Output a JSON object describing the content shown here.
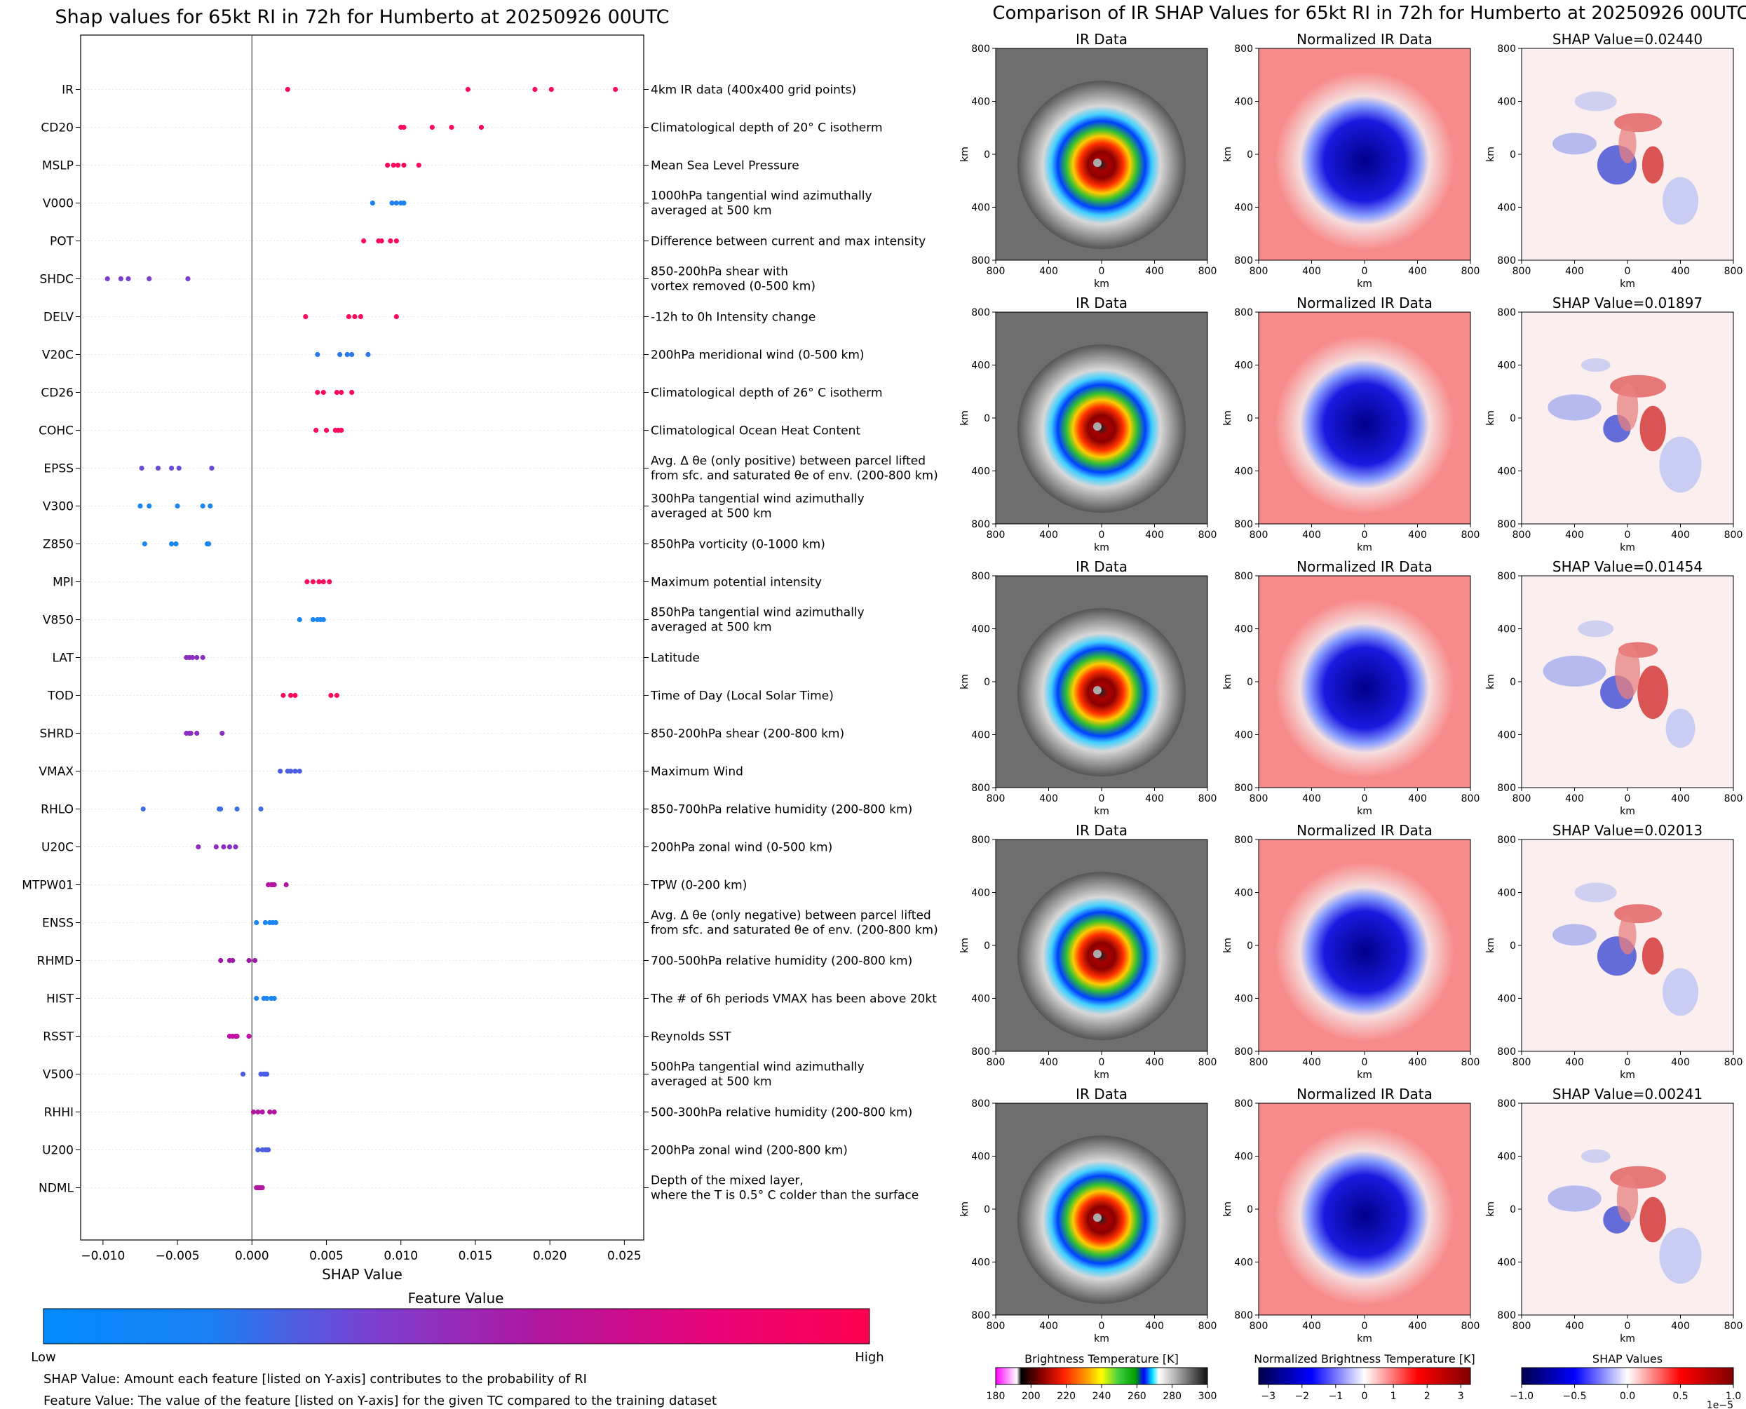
{
  "left_panel": {
    "notes": [
      "SHAP Value: Amount each feature [listed on Y-axis] contributes to the probability of RI",
      "Feature Value: The value of the feature [listed on Y-axis] for the given TC compared to the training dataset"
    ],
    "colorbar": {
      "title": "Feature Value",
      "low_label": "Low",
      "high_label": "High",
      "colors": [
        "#008afb",
        "#7c3fd0",
        "#c70a9f",
        "#ff0050"
      ]
    }
  },
  "right_panel": {
    "title": "Comparison of IR SHAP Values for 65kt RI in 72h for Humberto at 20250926 00UTC",
    "column_titles": [
      "IR Data",
      "Normalized IR Data"
    ],
    "shap_titles": [
      "SHAP Value=0.02440",
      "SHAP Value=0.01897",
      "SHAP Value=0.01454",
      "SHAP Value=0.02013",
      "SHAP Value=0.00241"
    ],
    "axis_tick_labels": [
      "800",
      "400",
      "0",
      "400",
      "800"
    ],
    "axis_label": "km",
    "colorbars": [
      {
        "title": "Brightness Temperature [K]",
        "ticks": [
          "180",
          "200",
          "220",
          "240",
          "260",
          "280",
          "300"
        ]
      },
      {
        "title": "Normalized Brightness Temperature [K]",
        "ticks": [
          "−3",
          "−2",
          "−1",
          "0",
          "1",
          "2",
          "3"
        ]
      },
      {
        "title": "SHAP Values",
        "ticks": [
          "−1.0",
          "−0.5",
          "0.0",
          "0.5",
          "1.0"
        ],
        "offset_label": "1e−5"
      }
    ]
  },
  "chart_data": [
    {
      "type": "scatter",
      "title": "Shap values for 65kt RI in 72h for Humberto at 20250926 00UTC",
      "xlabel": "SHAP Value",
      "xlim": [
        -0.0115,
        0.0263
      ],
      "xticks": [
        -0.01,
        -0.005,
        0.0,
        0.005,
        0.01,
        0.015,
        0.02,
        0.025
      ],
      "xtick_labels": [
        "−0.010",
        "−0.005",
        "0.000",
        "0.005",
        "0.010",
        "0.015",
        "0.020",
        "0.025"
      ],
      "features": [
        {
          "name": "IR",
          "description": [
            "4km IR data (400x400 grid points)"
          ],
          "color": "#ff0a5e",
          "values": [
            0.0024,
            0.0145,
            0.019,
            0.0201,
            0.0244
          ]
        },
        {
          "name": "CD20",
          "description": [
            "Climatological depth of 20° C isotherm"
          ],
          "color": "#ff0a5e",
          "values": [
            0.01,
            0.0102,
            0.0121,
            0.0134,
            0.0154
          ]
        },
        {
          "name": "MSLP",
          "description": [
            "Mean Sea Level Pressure"
          ],
          "color": "#ff0a5e",
          "values": [
            0.0091,
            0.0095,
            0.0098,
            0.0102,
            0.0112
          ]
        },
        {
          "name": "V000",
          "description": [
            "1000hPa tangential wind azimuthally",
            "averaged at 500 km"
          ],
          "color": "#1f80ee",
          "values": [
            0.0081,
            0.0094,
            0.0097,
            0.01,
            0.0102
          ]
        },
        {
          "name": "POT",
          "description": [
            "Difference between current and max intensity"
          ],
          "color": "#ff0a5e",
          "values": [
            0.0075,
            0.0085,
            0.0087,
            0.0093,
            0.0097
          ]
        },
        {
          "name": "SHDC",
          "description": [
            "850-200hPa shear with",
            "vortex removed (0-500 km)"
          ],
          "color": "#7a3ed0",
          "values": [
            -0.0097,
            -0.0088,
            -0.0083,
            -0.0069,
            -0.0043
          ]
        },
        {
          "name": "DELV",
          "description": [
            "-12h to 0h Intensity change"
          ],
          "color": "#ff0a5e",
          "values": [
            0.0036,
            0.0065,
            0.0069,
            0.0073,
            0.0097
          ]
        },
        {
          "name": "V20C",
          "description": [
            "200hPa meridional wind (0-500 km)"
          ],
          "color": "#2a78ea",
          "values": [
            0.0044,
            0.0059,
            0.0064,
            0.0067,
            0.0078
          ]
        },
        {
          "name": "CD26",
          "description": [
            "Climatological depth of 26° C isotherm"
          ],
          "color": "#ff0a5e",
          "values": [
            0.0044,
            0.0048,
            0.0057,
            0.006,
            0.0067
          ]
        },
        {
          "name": "COHC",
          "description": [
            "Climatological Ocean Heat Content"
          ],
          "color": "#ff0a5e",
          "values": [
            0.0043,
            0.005,
            0.0056,
            0.0058,
            0.006
          ]
        },
        {
          "name": "EPSS",
          "description": [
            "Avg. Δ θe (only positive) between parcel lifted",
            "from sfc. and saturated θe of env. (200-800 km)"
          ],
          "color": "#6a4ad6",
          "values": [
            -0.0074,
            -0.0063,
            -0.0054,
            -0.0049,
            -0.0027
          ]
        },
        {
          "name": "V300",
          "description": [
            "300hPa tangential wind azimuthally",
            "averaged at 500 km"
          ],
          "color": "#1a86f0",
          "values": [
            -0.0075,
            -0.0069,
            -0.005,
            -0.0033,
            -0.0028
          ]
        },
        {
          "name": "Z850",
          "description": [
            "850hPa vorticity (0-1000 km)"
          ],
          "color": "#1a86f0",
          "values": [
            -0.0072,
            -0.0054,
            -0.0051,
            -0.003,
            -0.0029
          ]
        },
        {
          "name": "MPI",
          "description": [
            "Maximum potential intensity"
          ],
          "color": "#ff0a5e",
          "values": [
            0.0037,
            0.0041,
            0.0045,
            0.0048,
            0.0052
          ]
        },
        {
          "name": "V850",
          "description": [
            "850hPa tangential wind azimuthally",
            "averaged at 500 km"
          ],
          "color": "#1a86f0",
          "values": [
            0.0032,
            0.0041,
            0.0044,
            0.0046,
            0.0048
          ]
        },
        {
          "name": "LAT",
          "description": [
            "Latitude"
          ],
          "color": "#8b2fbf",
          "values": [
            -0.0044,
            -0.0042,
            -0.004,
            -0.0037,
            -0.0033
          ]
        },
        {
          "name": "TOD",
          "description": [
            "Time of Day (Local Solar Time)"
          ],
          "color": "#ff0a5e",
          "values": [
            0.0021,
            0.0026,
            0.0029,
            0.0053,
            0.0057
          ]
        },
        {
          "name": "SHRD",
          "description": [
            "850-200hPa shear (200-800 km)"
          ],
          "color": "#8b2fbf",
          "values": [
            -0.0044,
            -0.0042,
            -0.0041,
            -0.0037,
            -0.002
          ]
        },
        {
          "name": "VMAX",
          "description": [
            "Maximum Wind"
          ],
          "color": "#4d5fe0",
          "values": [
            0.0019,
            0.0024,
            0.0026,
            0.0029,
            0.0032
          ]
        },
        {
          "name": "RHLO",
          "description": [
            "850-700hPa relative humidity (200-800 km)"
          ],
          "color": "#3e6ee4",
          "values": [
            -0.0073,
            -0.0022,
            -0.0021,
            -0.001,
            0.0006
          ]
        },
        {
          "name": "U20C",
          "description": [
            "200hPa zonal wind (0-500 km)"
          ],
          "color": "#8b2fbf",
          "values": [
            -0.0036,
            -0.0024,
            -0.0019,
            -0.0015,
            -0.0011
          ]
        },
        {
          "name": "MTPW01",
          "description": [
            "TPW (0-200 km)"
          ],
          "color": "#b0169f",
          "values": [
            0.0011,
            0.0013,
            0.0014,
            0.0015,
            0.0023
          ]
        },
        {
          "name": "ENSS",
          "description": [
            "Avg. Δ θe (only negative) between parcel lifted",
            "from sfc. and saturated θe of env. (200-800 km)"
          ],
          "color": "#1a86f0",
          "values": [
            0.0003,
            0.0009,
            0.0012,
            0.0014,
            0.0016
          ]
        },
        {
          "name": "RHMD",
          "description": [
            "700-500hPa relative humidity (200-800 km)"
          ],
          "color": "#a01aa8",
          "values": [
            -0.0021,
            -0.0015,
            -0.0013,
            -0.0002,
            0.0002
          ]
        },
        {
          "name": "HIST",
          "description": [
            "The # of 6h periods VMAX has been above 20kt"
          ],
          "color": "#1a86f0",
          "values": [
            0.0003,
            0.0008,
            0.001,
            0.0013,
            0.0015
          ]
        },
        {
          "name": "RSST",
          "description": [
            "Reynolds SST"
          ],
          "color": "#c20fa5",
          "values": [
            -0.0015,
            -0.0013,
            -0.0011,
            -0.001,
            -0.0002
          ]
        },
        {
          "name": "V500",
          "description": [
            "500hPa tangential wind azimuthally",
            "averaged at 500 km"
          ],
          "color": "#4d5fe0",
          "values": [
            -0.0006,
            0.0006,
            0.0008,
            0.0009,
            0.001
          ]
        },
        {
          "name": "RHHI",
          "description": [
            "500-300hPa relative humidity (200-800 km)"
          ],
          "color": "#b0169f",
          "values": [
            0.0001,
            0.0004,
            0.0007,
            0.0012,
            0.0015
          ]
        },
        {
          "name": "U200",
          "description": [
            "200hPa zonal wind (200-800 km)"
          ],
          "color": "#4d5fe0",
          "values": [
            0.0004,
            0.0007,
            0.0009,
            0.001,
            0.0011
          ]
        },
        {
          "name": "NDML",
          "description": [
            "Depth of the mixed layer,",
            "where the T is 0.5° C colder than the surface"
          ],
          "color": "#b0169f",
          "values": [
            0.0003,
            0.0004,
            0.0005,
            0.0006,
            0.0007
          ]
        }
      ]
    }
  ]
}
